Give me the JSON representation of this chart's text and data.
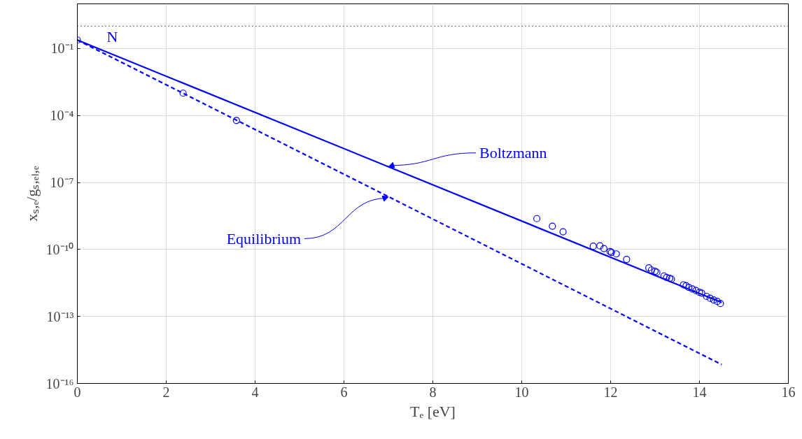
{
  "chart_data": {
    "type": "scatter",
    "xlabel": "Tₑ [eV]",
    "ylabel": "xₛ,ₑ/gₛ,ₑₗ,ₑ",
    "log": "y",
    "grid": true,
    "xlim": [
      0,
      16
    ],
    "xticks": [
      0,
      2,
      4,
      6,
      8,
      10,
      12,
      14,
      16
    ],
    "ylim": [
      1e-16,
      10
    ],
    "yticks": [
      {
        "value": 1e-16,
        "label": "10⁻¹⁶"
      },
      {
        "value": 1e-13,
        "label": "10⁻¹³"
      },
      {
        "value": 1e-10,
        "label": "10⁻¹⁰"
      },
      {
        "value": 1e-07,
        "label": "10⁻⁷"
      },
      {
        "value": 0.0001,
        "label": "10⁻⁴"
      },
      {
        "value": 0.1,
        "label": "10⁻¹"
      }
    ],
    "ref_lines": [
      {
        "axis": "y",
        "value": 1,
        "color": "#000000",
        "line_style": "dotted"
      }
    ],
    "annotations": [
      "N",
      {
        "text": "Boltzmann",
        "x": 7,
        "y": 5e-07
      },
      {
        "text": "Equilibrium",
        "x": 7,
        "y": 2.3e-08
      }
    ],
    "series": [
      {
        "color": "#0000ff",
        "marker": "circle",
        "x": [
          0,
          2.38,
          3.58,
          10.34,
          10.69,
          10.93,
          11.61,
          11.76,
          11.85,
          11.99,
          12.02,
          12.13,
          12.36,
          12.86,
          12.92,
          13.0,
          13.04,
          13.2,
          13.26,
          13.33,
          13.37,
          13.64,
          13.7,
          13.76,
          13.84,
          13.92,
          14.0,
          14.05,
          14.16,
          14.24,
          14.32,
          14.4,
          14.47
        ],
        "values": [
          0.24,
          0.001,
          6e-05,
          2.4e-09,
          1.1e-09,
          6.2e-10,
          1.4e-10,
          1.45e-10,
          1.1e-10,
          8.1e-11,
          7.4e-11,
          6.3e-11,
          3.6e-11,
          1.5e-11,
          1.2e-11,
          1.05e-11,
          9.5e-12,
          6.5e-12,
          5.6e-12,
          5.1e-12,
          4.7e-12,
          2.6e-12,
          2.4e-12,
          2e-12,
          1.7e-12,
          1.45e-12,
          1.2e-12,
          1.1e-12,
          7.9e-13,
          6.5e-13,
          5.5e-13,
          4.7e-13,
          3.8e-13
        ]
      },
      {
        "type": "line",
        "color": "#0000ff",
        "line_style": "solid",
        "x": [
          0,
          14.5
        ],
        "values": [
          0.24,
          4.2e-13
        ]
      },
      {
        "type": "line",
        "color": "#0000ff",
        "line_style": "dashed",
        "x": [
          0,
          14.5
        ],
        "values": [
          0.24,
          7e-16
        ]
      }
    ]
  }
}
